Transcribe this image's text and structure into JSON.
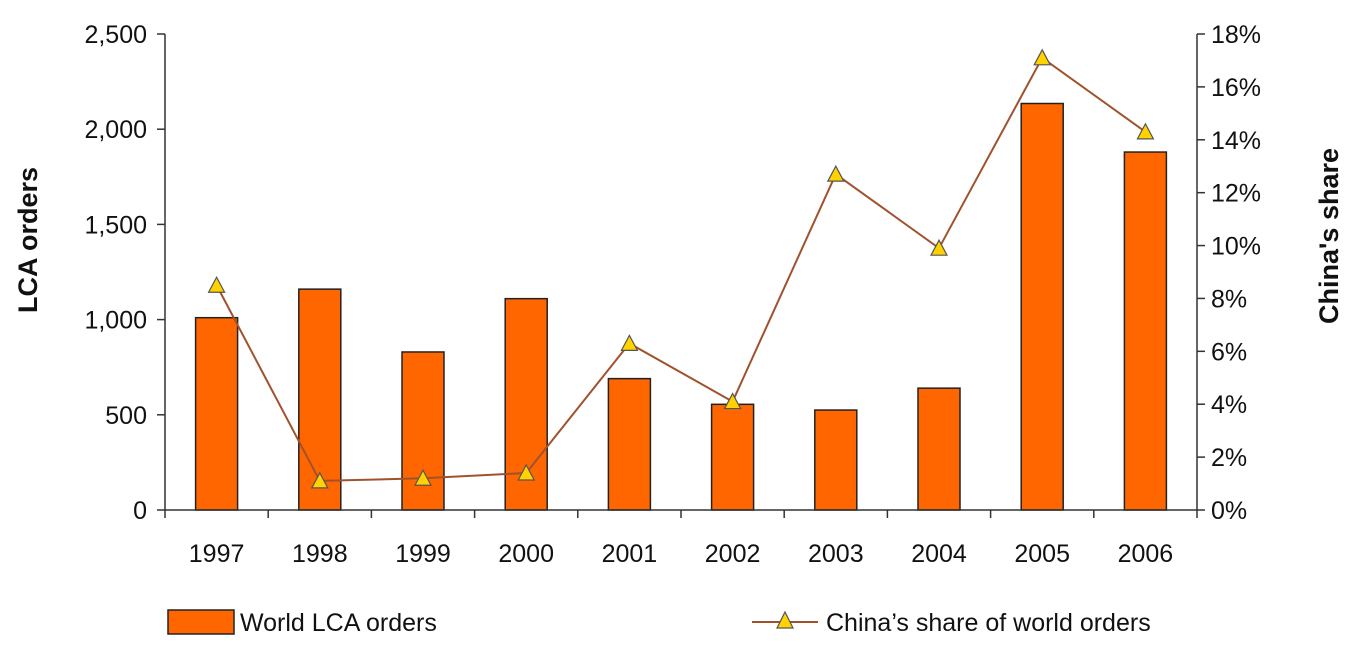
{
  "chart_data": {
    "type": "bar",
    "title": "",
    "categories": [
      "1997",
      "1998",
      "1999",
      "2000",
      "2001",
      "2002",
      "2003",
      "2004",
      "2005",
      "2006"
    ],
    "series": [
      {
        "name": "World LCA orders",
        "type": "bar",
        "axis": "left",
        "color": "#ff6600",
        "values": [
          1010,
          1160,
          830,
          1110,
          690,
          555,
          525,
          640,
          2135,
          1880
        ]
      },
      {
        "name": "China’s share of world orders",
        "type": "line",
        "axis": "right",
        "color": "#a0522d",
        "marker": "triangle",
        "marker_color": "#ffd200",
        "values": [
          8.5,
          1.1,
          1.2,
          1.4,
          6.3,
          4.1,
          12.7,
          9.9,
          17.1,
          14.3
        ]
      }
    ],
    "left_axis": {
      "label": "LCA orders",
      "ylim": [
        0,
        2500
      ],
      "ticks": [
        0,
        500,
        1000,
        1500,
        2000,
        2500
      ],
      "tick_labels": [
        "0",
        "500",
        "1,000",
        "1,500",
        "2,000",
        "2,500"
      ]
    },
    "right_axis": {
      "label": "China's share",
      "ylim": [
        0,
        18
      ],
      "ticks": [
        0,
        2,
        4,
        6,
        8,
        10,
        12,
        14,
        16,
        18
      ],
      "tick_labels": [
        "0%",
        "2%",
        "4%",
        "6%",
        "8%",
        "10%",
        "12%",
        "14%",
        "16%",
        "18%"
      ]
    },
    "xlabel": "",
    "grid": false,
    "legend": {
      "position": "bottom"
    }
  }
}
